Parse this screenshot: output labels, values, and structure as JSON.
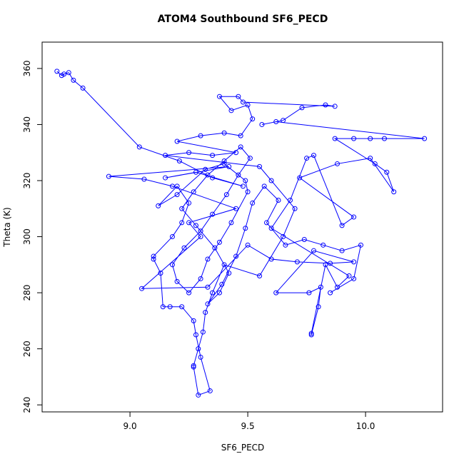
{
  "chart_data": {
    "type": "line",
    "markers": true,
    "title": "ATOM4 Southbound SF6_PECD",
    "x_label": "SF6_PECD",
    "y_label": "Theta (K)",
    "xlim": [
      8.627,
      10.327
    ],
    "ylim": [
      237.5,
      369.4
    ],
    "xticks": [
      {
        "value": 9.0,
        "label": "9.0"
      },
      {
        "value": 9.5,
        "label": "9.5"
      },
      {
        "value": 10.0,
        "label": "10.0"
      }
    ],
    "yticks": [
      240,
      260,
      280,
      300,
      320,
      340,
      360
    ],
    "series": [
      {
        "color": "#0000ff",
        "x": [
          8.69,
          8.71,
          8.72,
          8.74,
          8.76,
          8.8,
          9.04,
          9.21,
          9.35,
          9.48,
          9.28,
          9.15,
          9.42,
          8.91,
          9.06,
          9.18,
          9.45,
          9.25,
          9.3,
          9.05,
          9.33,
          9.5,
          9.6,
          9.71,
          9.85,
          9.95,
          9.78,
          9.62,
          9.76,
          9.81,
          9.8,
          9.77,
          9.77,
          9.83,
          9.88,
          9.93,
          9.6,
          9.68,
          9.75,
          9.78,
          9.9,
          9.95,
          9.72,
          9.88,
          10.02,
          10.12,
          10.09,
          10.04,
          9.87,
          9.95,
          10.02,
          10.08,
          10.25,
          9.62,
          9.56,
          9.65,
          9.73,
          9.83,
          9.87,
          9.48,
          9.46,
          9.38,
          9.43,
          9.5,
          9.52,
          9.47,
          9.4,
          9.3,
          9.2,
          9.45,
          9.35,
          9.25,
          9.15,
          9.55,
          9.6,
          9.7,
          9.65,
          9.55,
          9.4,
          9.35,
          9.32,
          9.31,
          9.29,
          9.27,
          9.27,
          9.29,
          9.34,
          9.3,
          9.28,
          9.27,
          9.22,
          9.17,
          9.14,
          9.13,
          9.1,
          9.1,
          9.18,
          9.22,
          9.25,
          9.2,
          9.12,
          9.2,
          9.32,
          9.4,
          9.49,
          9.5,
          9.43,
          9.38,
          9.33,
          9.3,
          9.25,
          9.2,
          9.18,
          9.23,
          9.3,
          9.35,
          9.41,
          9.46,
          9.51,
          9.47,
          9.4,
          9.33,
          9.27,
          9.22,
          9.28,
          9.36,
          9.42,
          9.38,
          9.33,
          9.39,
          9.45,
          9.49,
          9.52,
          9.57,
          9.63,
          9.58,
          9.66,
          9.74,
          9.82,
          9.9,
          9.98,
          9.95,
          9.85
        ],
        "y": [
          359,
          357.5,
          358,
          358.5,
          355.8,
          353,
          332,
          327,
          321,
          318,
          323,
          321,
          325,
          321.5,
          320.5,
          318,
          310,
          305,
          300,
          281.5,
          282,
          297,
          292,
          291,
          290.5,
          291,
          295,
          280,
          280,
          282,
          275,
          265,
          265.5,
          290,
          282,
          286,
          303,
          313,
          328,
          329,
          304,
          307,
          321,
          326,
          328,
          316,
          323,
          326,
          335,
          335,
          335,
          335,
          335,
          341,
          340,
          341.5,
          346,
          347,
          346.5,
          348,
          350,
          350,
          345,
          347,
          342,
          336,
          337,
          336,
          334,
          330,
          329,
          330,
          329,
          325,
          320,
          310,
          300,
          286,
          290,
          280,
          273,
          266,
          260,
          254,
          253.5,
          243.5,
          245,
          257,
          265,
          270,
          275,
          275,
          275,
          287,
          292,
          293,
          300,
          305,
          312,
          318,
          311,
          315,
          324,
          326,
          320,
          316,
          305,
          298,
          292,
          285,
          280,
          284,
          290,
          296,
          302,
          308,
          315,
          322,
          328,
          332,
          327,
          322,
          316,
          310,
          304,
          296,
          287,
          280,
          276,
          283,
          293,
          303,
          312,
          318,
          313,
          305,
          297,
          299,
          297,
          295,
          297,
          285,
          280
        ]
      }
    ]
  }
}
